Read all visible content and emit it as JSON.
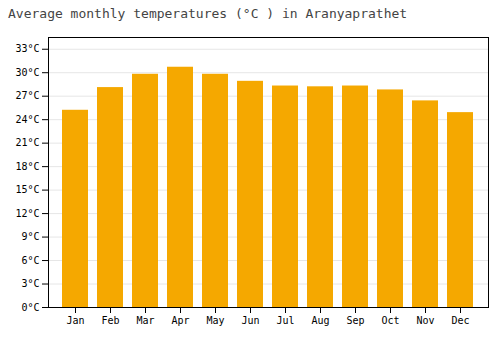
{
  "chart_data": {
    "type": "bar",
    "title": "Average monthly temperatures (°C ) in Aranyaprathet",
    "categories": [
      "Jan",
      "Feb",
      "Mar",
      "Apr",
      "May",
      "Jun",
      "Jul",
      "Aug",
      "Sep",
      "Oct",
      "Nov",
      "Dec"
    ],
    "values": [
      25.2,
      28.1,
      29.8,
      30.7,
      29.8,
      28.9,
      28.3,
      28.2,
      28.3,
      27.8,
      26.4,
      24.9
    ],
    "color": "#F5A800",
    "ylim": [
      0,
      34.5
    ],
    "yticks": [
      {
        "value": 0,
        "label": "0°C"
      },
      {
        "value": 3,
        "label": "3°C"
      },
      {
        "value": 6,
        "label": "6°C"
      },
      {
        "value": 9,
        "label": "9°C"
      },
      {
        "value": 12,
        "label": "12°C"
      },
      {
        "value": 15,
        "label": "15°C"
      },
      {
        "value": 18,
        "label": "18°C"
      },
      {
        "value": 21,
        "label": "21°C"
      },
      {
        "value": 24,
        "label": "24°C"
      },
      {
        "value": 27,
        "label": "27°C"
      },
      {
        "value": 30,
        "label": "30°C"
      },
      {
        "value": 33,
        "label": "33°C"
      }
    ],
    "grid": true
  }
}
